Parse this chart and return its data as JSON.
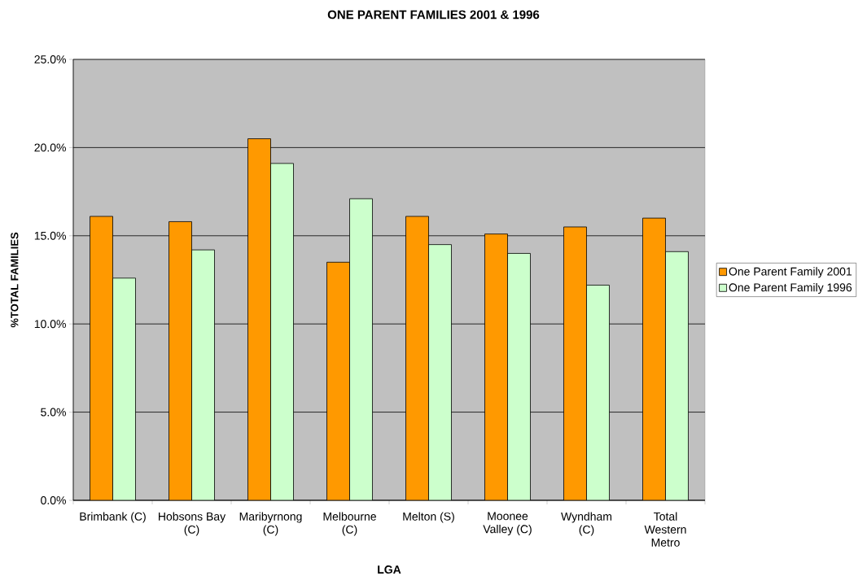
{
  "chart_data": {
    "type": "bar",
    "title": "ONE PARENT FAMILIES 2001 & 1996",
    "xlabel": "LGA",
    "ylabel": "%TOTAL FAMILIES",
    "categories": [
      "Brimbank (C)",
      "Hobsons Bay (C)",
      "Maribyrnong (C)",
      "Melbourne (C)",
      "Melton (S)",
      "Moonee Valley (C)",
      "Wyndham (C)",
      "Total Western Metro"
    ],
    "series": [
      {
        "name": "One Parent Family 2001",
        "color": "#ff9900",
        "values": [
          16.1,
          15.8,
          20.5,
          13.5,
          16.1,
          15.1,
          15.5,
          16.0
        ]
      },
      {
        "name": "One Parent Family 1996",
        "color": "#ccffcc",
        "values": [
          12.6,
          14.2,
          19.1,
          17.1,
          14.5,
          14.0,
          12.2,
          14.1
        ]
      }
    ],
    "ylim": [
      0,
      25
    ],
    "yticks": [
      {
        "value": 0,
        "label": "0.0%"
      },
      {
        "value": 5,
        "label": "5.0%"
      },
      {
        "value": 10,
        "label": "10.0%"
      },
      {
        "value": 15,
        "label": "15.0%"
      },
      {
        "value": 20,
        "label": "20.0%"
      },
      {
        "value": 25,
        "label": "25.0%"
      }
    ],
    "grid": "y",
    "legend": "right"
  }
}
